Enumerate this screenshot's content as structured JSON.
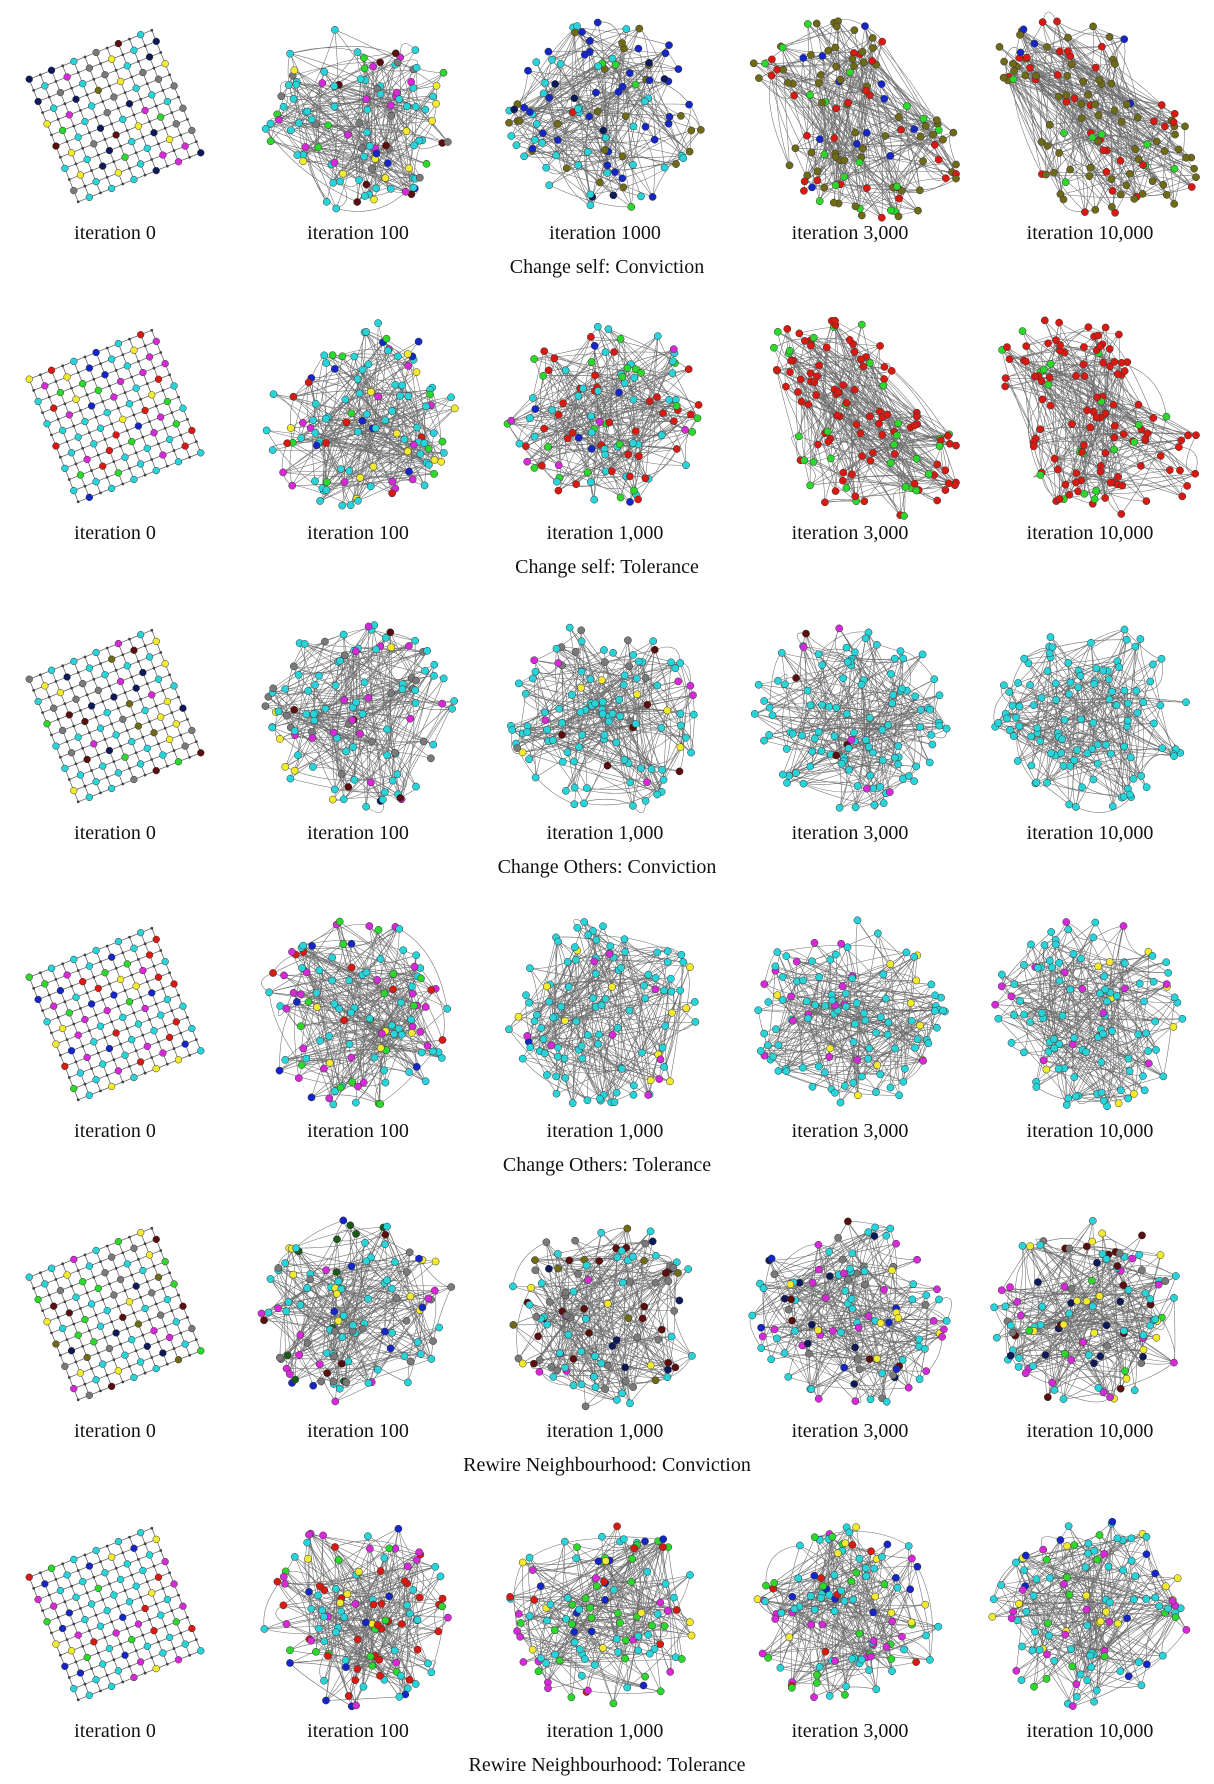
{
  "figure": {
    "rows": [
      {
        "title": "Change self: Conviction",
        "captions": [
          "iteration 0",
          "iteration 100",
          "iteration 1000",
          "iteration 3,000",
          "iteration 10,000"
        ]
      },
      {
        "title": "Change self: Tolerance",
        "captions": [
          "iteration 0",
          "iteration 100",
          "iteration 1,000",
          "iteration 3,000",
          "iteration 10,000"
        ]
      },
      {
        "title": "Change Others: Conviction",
        "captions": [
          "iteration 0",
          "iteration 100",
          "iteration 1,000",
          "iteration 3,000",
          "iteration 10,000"
        ]
      },
      {
        "title": "Change Others: Tolerance",
        "captions": [
          "iteration 0",
          "iteration 100",
          "iteration 1,000",
          "iteration 3,000",
          "iteration 10,000"
        ]
      },
      {
        "title": "Rewire Neighbourhood: Conviction",
        "captions": [
          "iteration 0",
          "iteration 100",
          "iteration 1,000",
          "iteration 3,000",
          "iteration 10,000"
        ]
      },
      {
        "title": "Rewire Neighbourhood: Tolerance",
        "captions": [
          "iteration 0",
          "iteration 100",
          "iteration 1,000",
          "iteration 3,000",
          "iteration 10,000"
        ]
      }
    ]
  },
  "colors": {
    "cyan": "#27d4d9",
    "magenta": "#d62ad8",
    "yellow": "#f2ea2c",
    "gray": "#7a7a7a",
    "green": "#2bd82b",
    "red": "#d81a12",
    "blue": "#1426c8",
    "navy": "#0c1a5a",
    "maroon": "#5a0e0e",
    "olive": "#6e6a18",
    "darkgreen": "#1c5a1c",
    "edge": "#555555"
  },
  "palettes": [
    {
      "grid": {
        "cyan": 0.35,
        "gray": 0.18,
        "magenta": 0.1,
        "yellow": 0.08,
        "green": 0.08,
        "navy": 0.08,
        "maroon": 0.07,
        "olive": 0.06
      },
      "graphs": [
        {
          "cyan": 0.45,
          "gray": 0.2,
          "magenta": 0.1,
          "yellow": 0.08,
          "maroon": 0.06,
          "green": 0.06,
          "blue": 0.05
        },
        {
          "olive": 0.3,
          "cyan": 0.3,
          "blue": 0.2,
          "navy": 0.08,
          "green": 0.07,
          "red": 0.05
        },
        {
          "olive": 0.55,
          "red": 0.25,
          "blue": 0.1,
          "green": 0.1
        },
        {
          "olive": 0.6,
          "red": 0.25,
          "green": 0.1,
          "blue": 0.05
        }
      ]
    },
    {
      "grid": {
        "cyan": 0.4,
        "magenta": 0.15,
        "yellow": 0.12,
        "green": 0.12,
        "red": 0.12,
        "blue": 0.09
      },
      "graphs": [
        {
          "cyan": 0.55,
          "yellow": 0.1,
          "green": 0.1,
          "magenta": 0.1,
          "blue": 0.08,
          "red": 0.07
        },
        {
          "red": 0.35,
          "cyan": 0.35,
          "green": 0.2,
          "magenta": 0.05,
          "blue": 0.05
        },
        {
          "red": 0.82,
          "green": 0.18
        },
        {
          "red": 0.88,
          "green": 0.12
        }
      ]
    },
    {
      "grid": {
        "cyan": 0.35,
        "gray": 0.18,
        "magenta": 0.1,
        "yellow": 0.08,
        "green": 0.08,
        "navy": 0.08,
        "maroon": 0.07,
        "olive": 0.06
      },
      "graphs": [
        {
          "cyan": 0.55,
          "gray": 0.15,
          "magenta": 0.1,
          "maroon": 0.08,
          "yellow": 0.07,
          "navy": 0.05
        },
        {
          "cyan": 0.8,
          "magenta": 0.08,
          "gray": 0.05,
          "yellow": 0.04,
          "maroon": 0.03
        },
        {
          "cyan": 0.9,
          "magenta": 0.06,
          "maroon": 0.04
        },
        {
          "cyan": 1.0
        }
      ]
    },
    {
      "grid": {
        "cyan": 0.4,
        "magenta": 0.15,
        "yellow": 0.12,
        "green": 0.12,
        "red": 0.12,
        "blue": 0.09
      },
      "graphs": [
        {
          "cyan": 0.5,
          "magenta": 0.18,
          "green": 0.1,
          "yellow": 0.08,
          "blue": 0.08,
          "red": 0.06
        },
        {
          "cyan": 0.75,
          "magenta": 0.12,
          "yellow": 0.1,
          "blue": 0.03
        },
        {
          "cyan": 0.8,
          "magenta": 0.12,
          "yellow": 0.08
        },
        {
          "cyan": 0.82,
          "magenta": 0.12,
          "yellow": 0.06
        }
      ]
    },
    {
      "grid": {
        "cyan": 0.35,
        "gray": 0.18,
        "magenta": 0.1,
        "yellow": 0.08,
        "green": 0.08,
        "navy": 0.08,
        "maroon": 0.07,
        "olive": 0.06
      },
      "graphs": [
        {
          "cyan": 0.35,
          "gray": 0.2,
          "magenta": 0.15,
          "yellow": 0.08,
          "blue": 0.08,
          "darkgreen": 0.07,
          "maroon": 0.07
        },
        {
          "cyan": 0.3,
          "gray": 0.2,
          "maroon": 0.15,
          "navy": 0.1,
          "yellow": 0.1,
          "magenta": 0.08,
          "olive": 0.07
        },
        {
          "cyan": 0.35,
          "magenta": 0.18,
          "gray": 0.15,
          "navy": 0.1,
          "maroon": 0.1,
          "yellow": 0.07,
          "blue": 0.05
        },
        {
          "cyan": 0.4,
          "magenta": 0.15,
          "maroon": 0.12,
          "navy": 0.1,
          "yellow": 0.1,
          "gray": 0.08,
          "green": 0.05
        }
      ]
    },
    {
      "grid": {
        "cyan": 0.4,
        "magenta": 0.15,
        "yellow": 0.12,
        "green": 0.12,
        "red": 0.12,
        "blue": 0.09
      },
      "graphs": [
        {
          "cyan": 0.3,
          "magenta": 0.2,
          "green": 0.15,
          "red": 0.15,
          "yellow": 0.1,
          "blue": 0.1
        },
        {
          "cyan": 0.35,
          "green": 0.2,
          "magenta": 0.12,
          "red": 0.12,
          "blue": 0.11,
          "yellow": 0.1
        },
        {
          "cyan": 0.45,
          "magenta": 0.15,
          "green": 0.15,
          "blue": 0.1,
          "red": 0.08,
          "yellow": 0.07
        },
        {
          "cyan": 0.5,
          "magenta": 0.18,
          "blue": 0.1,
          "green": 0.1,
          "yellow": 0.08,
          "red": 0.04
        }
      ]
    }
  ]
}
